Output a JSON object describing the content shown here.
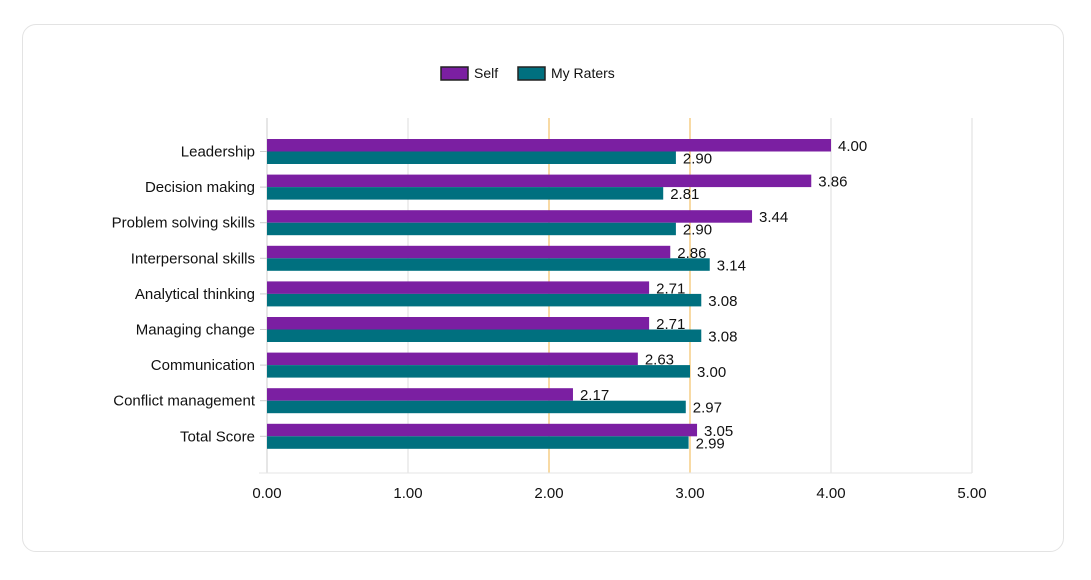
{
  "chart_data": {
    "type": "bar",
    "orientation": "horizontal",
    "categories": [
      "Leadership",
      "Decision making",
      "Problem solving skills",
      "Interpersonal skills",
      "Analytical thinking",
      "Managing change",
      "Communication",
      "Conflict management",
      "Total Score"
    ],
    "series": [
      {
        "name": "Self",
        "color": "#7b1fa2",
        "values": [
          4.0,
          3.86,
          3.44,
          2.86,
          2.71,
          2.71,
          2.63,
          2.17,
          3.05
        ],
        "labels": [
          "4.00",
          "3.86",
          "3.44",
          "2.86",
          "2.71",
          "2.71",
          "2.63",
          "2.17",
          "3.05"
        ]
      },
      {
        "name": "My Raters",
        "color": "#00707f",
        "values": [
          2.9,
          2.81,
          2.9,
          3.14,
          3.08,
          3.08,
          3.0,
          2.97,
          2.99
        ],
        "labels": [
          "2.90",
          "2.81",
          "2.90",
          "3.14",
          "3.08",
          "3.08",
          "3.00",
          "2.97",
          "2.99"
        ]
      }
    ],
    "xlim": [
      0,
      5
    ],
    "xticks": [
      0,
      1,
      2,
      3,
      4,
      5
    ],
    "xtick_labels": [
      "0.00",
      "1.00",
      "2.00",
      "3.00",
      "4.00",
      "5.00"
    ],
    "highlight_gridlines": [
      2,
      3
    ],
    "highlight_color": "#f0b64a",
    "gridline_color": "#dddddd",
    "grid": true,
    "legend_position": "top-center",
    "title": "",
    "xlabel": "",
    "ylabel": ""
  }
}
